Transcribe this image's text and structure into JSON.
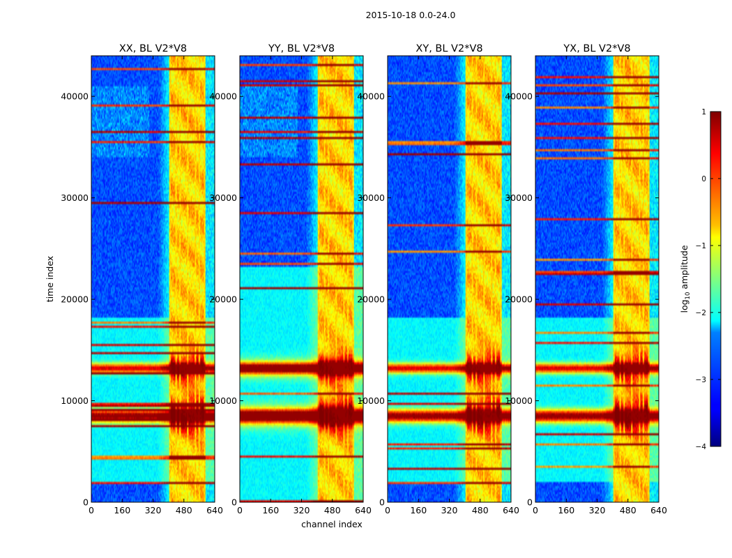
{
  "figure": {
    "suptitle": "2015-10-18 0.0-24.0"
  },
  "chart_data": {
    "type": "heatmap",
    "xlabel": "channel index",
    "ylabel": "time index",
    "xlim": [
      0,
      640
    ],
    "ylim": [
      0,
      44000
    ],
    "x_ticks": [
      0,
      160,
      320,
      480,
      640
    ],
    "y_ticks": [
      0,
      10000,
      20000,
      30000,
      40000
    ],
    "x_tick_labels": [
      "0",
      "160",
      "320",
      "480",
      "640"
    ],
    "y_tick_labels": [
      "0",
      "10000",
      "20000",
      "30000",
      "40000"
    ],
    "panels": [
      {
        "title": "XX, BL V2*V8",
        "pol": "XX"
      },
      {
        "title": "YY, BL V2*V8",
        "pol": "YY"
      },
      {
        "title": "XY, BL V2*V8",
        "pol": "XY"
      },
      {
        "title": "YX, BL V2*V8",
        "pol": "YX"
      }
    ],
    "colorbar": {
      "label": "log10 amplitude",
      "label_base": "log",
      "label_sub": "10",
      "label_rest": " amplitude",
      "range": [
        -4,
        1
      ],
      "ticks": [
        1,
        0,
        -1,
        -2,
        -3,
        -4
      ],
      "tick_labels": [
        "1",
        "0",
        "−1",
        "−2",
        "−3",
        "−4"
      ],
      "colormap": "jet"
    },
    "features": {
      "rfi_band_channels": [
        405,
        590
      ],
      "strong_rows_time_index": [
        8500,
        13200
      ],
      "bright_column_channels": [
        408,
        440,
        460,
        500,
        540,
        560,
        588
      ]
    }
  }
}
